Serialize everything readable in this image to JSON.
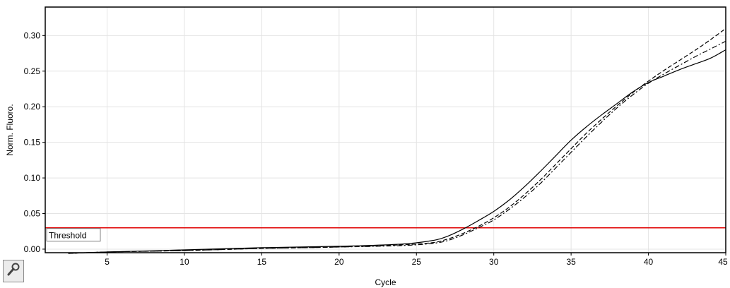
{
  "chart_data": {
    "type": "line",
    "title": "",
    "xlabel": "Cycle",
    "ylabel": "Norm. Fluoro.",
    "xlim": [
      1,
      45
    ],
    "ylim": [
      -0.005,
      0.34
    ],
    "x_ticks": [
      5,
      10,
      15,
      20,
      25,
      30,
      35,
      40,
      45
    ],
    "y_ticks": [
      0.0,
      0.05,
      0.1,
      0.15,
      0.2,
      0.25,
      0.3
    ],
    "grid": true,
    "threshold": {
      "label": "Threshold",
      "value": 0.03,
      "color": "#e00000"
    },
    "series": [
      {
        "style": "solid",
        "x": [
          2.5,
          5,
          10,
          15,
          20,
          24,
          26,
          27,
          28,
          29,
          30,
          31,
          32,
          33,
          34,
          35,
          36,
          37,
          38,
          39,
          40,
          41,
          42,
          43,
          44,
          45
        ],
        "y": [
          -0.006,
          -0.004,
          -0.001,
          0.002,
          0.004,
          0.007,
          0.012,
          0.018,
          0.028,
          0.04,
          0.053,
          0.069,
          0.088,
          0.109,
          0.131,
          0.153,
          0.172,
          0.189,
          0.205,
          0.221,
          0.234,
          0.243,
          0.252,
          0.26,
          0.268,
          0.28
        ]
      },
      {
        "style": "dashed",
        "x": [
          2.5,
          5,
          10,
          15,
          20,
          24,
          26,
          27,
          28,
          29,
          30,
          31,
          32,
          33,
          34,
          35,
          36,
          37,
          38,
          39,
          40,
          41,
          42,
          43,
          44,
          45
        ],
        "y": [
          -0.006,
          -0.004,
          -0.002,
          0.001,
          0.003,
          0.006,
          0.009,
          0.014,
          0.022,
          0.032,
          0.044,
          0.059,
          0.077,
          0.097,
          0.119,
          0.141,
          0.163,
          0.183,
          0.202,
          0.22,
          0.236,
          0.251,
          0.265,
          0.279,
          0.294,
          0.31
        ]
      },
      {
        "style": "dashdot",
        "x": [
          2.5,
          5,
          10,
          15,
          20,
          24,
          26,
          27,
          28,
          29,
          30,
          31,
          32,
          33,
          34,
          35,
          36,
          37,
          38,
          39,
          40,
          41,
          42,
          43,
          44,
          45
        ],
        "y": [
          -0.006,
          -0.004,
          -0.002,
          0.001,
          0.003,
          0.005,
          0.008,
          0.012,
          0.02,
          0.03,
          0.041,
          0.056,
          0.073,
          0.092,
          0.114,
          0.136,
          0.158,
          0.179,
          0.199,
          0.217,
          0.233,
          0.246,
          0.258,
          0.27,
          0.281,
          0.292
        ]
      }
    ]
  },
  "toolbar": {
    "tool_icon": "wrench-icon"
  }
}
